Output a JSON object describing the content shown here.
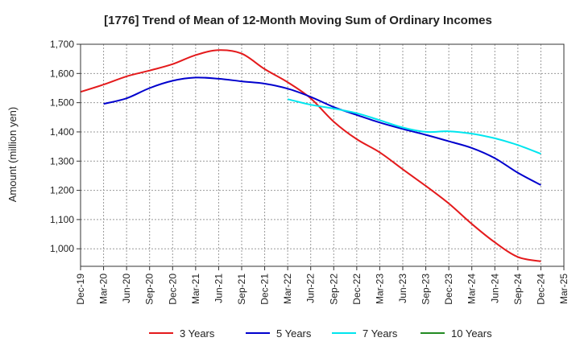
{
  "chart_data": {
    "type": "line",
    "title": "[1776]  Trend of Mean of 12-Month Moving Sum of Ordinary Incomes",
    "xlabel": "",
    "ylabel": "Amount (million yen)",
    "ylim": [
      940,
      1700
    ],
    "yticks": [
      1000,
      1100,
      1200,
      1300,
      1400,
      1500,
      1600,
      1700
    ],
    "ytick_labels": [
      "1,000",
      "1,100",
      "1,200",
      "1,300",
      "1,400",
      "1,500",
      "1,600",
      "1,700"
    ],
    "xtick_labels": [
      "Dec-19",
      "Mar-20",
      "Jun-20",
      "Sep-20",
      "Dec-20",
      "Mar-21",
      "Jun-21",
      "Sep-21",
      "Dec-21",
      "Mar-22",
      "Jun-22",
      "Sep-22",
      "Dec-22",
      "Mar-23",
      "Jun-23",
      "Sep-23",
      "Dec-23",
      "Mar-24",
      "Jun-24",
      "Sep-24",
      "Dec-24",
      "Mar-25"
    ],
    "grid": true,
    "legend_position": "bottom",
    "series": [
      {
        "name": "3 Years",
        "color": "#e41a1c",
        "points": [
          [
            0,
            1537
          ],
          [
            1,
            1562
          ],
          [
            2,
            1590
          ],
          [
            3,
            1610
          ],
          [
            4,
            1632
          ],
          [
            5,
            1663
          ],
          [
            6,
            1680
          ],
          [
            7,
            1668
          ],
          [
            8,
            1615
          ],
          [
            9,
            1570
          ],
          [
            10,
            1515
          ],
          [
            11,
            1435
          ],
          [
            12,
            1375
          ],
          [
            13,
            1330
          ],
          [
            14,
            1272
          ],
          [
            15,
            1215
          ],
          [
            16,
            1155
          ],
          [
            17,
            1085
          ],
          [
            18,
            1022
          ],
          [
            19,
            972
          ],
          [
            20,
            957
          ]
        ]
      },
      {
        "name": "5 Years",
        "color": "#0000cd",
        "points": [
          [
            1,
            1496
          ],
          [
            2,
            1515
          ],
          [
            3,
            1550
          ],
          [
            4,
            1575
          ],
          [
            5,
            1586
          ],
          [
            6,
            1582
          ],
          [
            7,
            1573
          ],
          [
            8,
            1565
          ],
          [
            9,
            1548
          ],
          [
            10,
            1520
          ],
          [
            11,
            1485
          ],
          [
            12,
            1458
          ],
          [
            13,
            1432
          ],
          [
            14,
            1410
          ],
          [
            15,
            1390
          ],
          [
            16,
            1368
          ],
          [
            17,
            1345
          ],
          [
            18,
            1310
          ],
          [
            19,
            1260
          ],
          [
            20,
            1218
          ]
        ]
      },
      {
        "name": "7 Years",
        "color": "#00e5ee",
        "points": [
          [
            9,
            1512
          ],
          [
            10,
            1493
          ],
          [
            11,
            1480
          ],
          [
            12,
            1464
          ],
          [
            13,
            1440
          ],
          [
            14,
            1415
          ],
          [
            15,
            1400
          ],
          [
            16,
            1402
          ],
          [
            17,
            1394
          ],
          [
            18,
            1378
          ],
          [
            19,
            1355
          ],
          [
            20,
            1325
          ]
        ]
      },
      {
        "name": "10 Years",
        "color": "#228b22",
        "points": []
      }
    ]
  }
}
